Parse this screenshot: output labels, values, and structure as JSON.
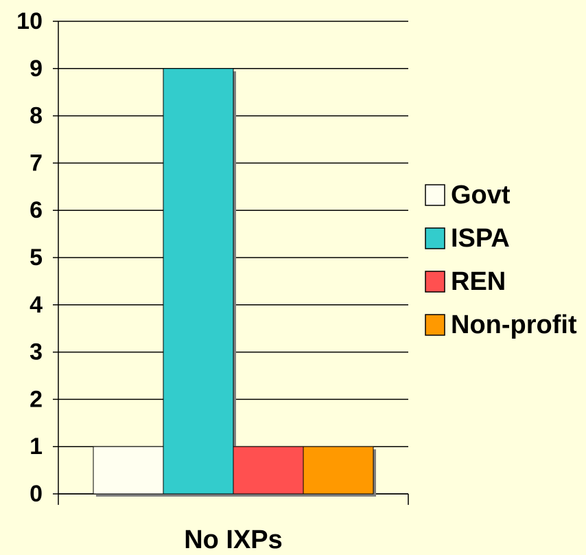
{
  "chart_data": {
    "type": "bar",
    "categories": [
      "No IXPs"
    ],
    "series": [
      {
        "name": "Govt",
        "color": "#fffff0",
        "values": [
          1
        ]
      },
      {
        "name": "ISPA",
        "color": "#33cccc",
        "values": [
          9
        ]
      },
      {
        "name": "REN",
        "color": "#ff5050",
        "values": [
          1
        ]
      },
      {
        "name": "Non-profit",
        "color": "#ff9900",
        "values": [
          1
        ]
      }
    ],
    "ylim": [
      0,
      10
    ],
    "yticks": [
      0,
      1,
      2,
      3,
      4,
      5,
      6,
      7,
      8,
      9,
      10
    ],
    "grid": true,
    "legend": "right"
  }
}
